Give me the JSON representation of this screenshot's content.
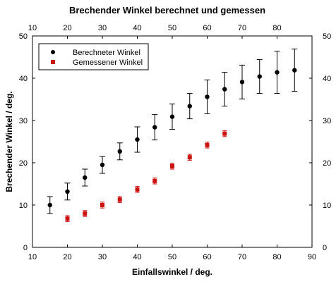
{
  "chart_data": {
    "type": "scatter",
    "title": "Brechender Winkel berechnet und gemessen",
    "xlabel": "Einfallswinkel / deg.",
    "ylabel": "Brechender Winkel / deg.",
    "xlim": [
      10,
      90
    ],
    "ylim": [
      0,
      50
    ],
    "x_ticks": [
      10,
      20,
      30,
      40,
      50,
      60,
      70,
      80,
      90
    ],
    "x_ticks_top": [
      10,
      20,
      30,
      40,
      50,
      60,
      70,
      80
    ],
    "y_ticks": [
      0,
      10,
      20,
      30,
      40,
      50
    ],
    "grid": false,
    "legend_position": "top-left",
    "series": [
      {
        "name": "Berechneter Winkel",
        "color": "#000000",
        "marker": "circle",
        "x": [
          15,
          20,
          25,
          30,
          35,
          40,
          45,
          50,
          55,
          60,
          65,
          70,
          75,
          80,
          85
        ],
        "y": [
          10.0,
          13.2,
          16.5,
          19.5,
          22.7,
          25.5,
          28.4,
          30.9,
          33.4,
          35.6,
          37.4,
          39.1,
          40.4,
          41.4,
          41.9
        ],
        "yerr": [
          2.0,
          2.0,
          2.0,
          2.0,
          2.0,
          3.0,
          3.0,
          3.0,
          3.0,
          4.0,
          4.0,
          4.0,
          4.0,
          5.0,
          5.0
        ]
      },
      {
        "name": "Gemessener Winkel",
        "color": "#cc1111",
        "marker": "square",
        "x": [
          20,
          25,
          30,
          35,
          40,
          45,
          50,
          55,
          60,
          65
        ],
        "y": [
          6.8,
          8.0,
          10.0,
          11.3,
          13.7,
          15.7,
          19.2,
          21.3,
          24.2,
          26.9
        ],
        "yerr": [
          0.7,
          0.7,
          0.7,
          0.7,
          0.7,
          0.7,
          0.7,
          0.7,
          0.7,
          0.7
        ]
      }
    ]
  }
}
